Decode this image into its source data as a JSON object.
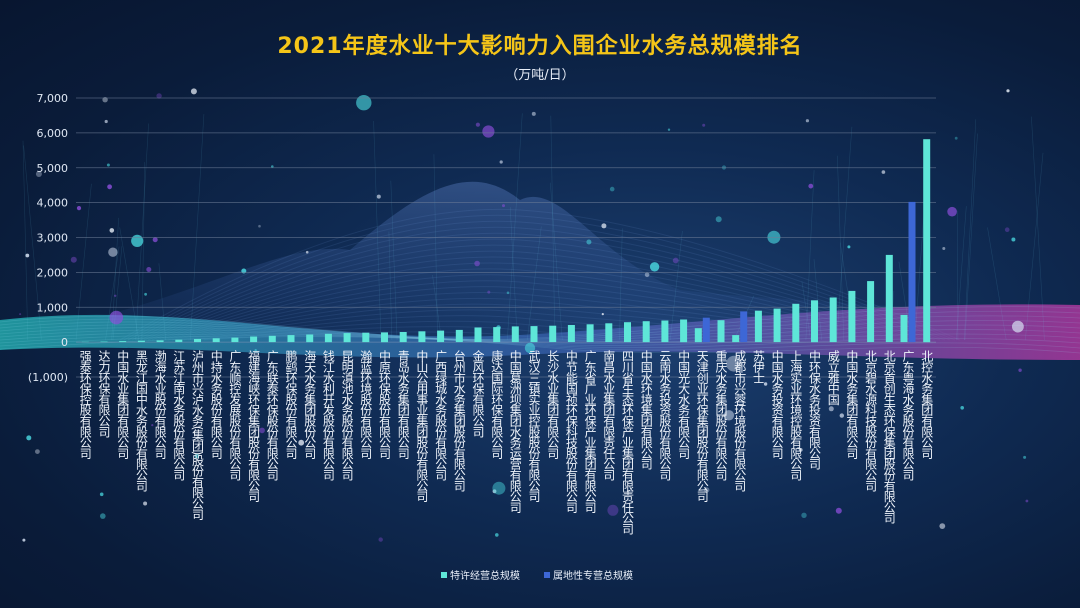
{
  "chart_data": {
    "type": "bar",
    "title": "2021年度水业十大影响力入围企业水务总规模排名",
    "unit_label": "（万吨/日）",
    "ylim": [
      -1000,
      7000
    ],
    "yticks": [
      -1000,
      0,
      1000,
      2000,
      3000,
      4000,
      5000,
      6000,
      7000
    ],
    "ytick_labels": [
      "(1,000)",
      "0",
      "1,000",
      "2,000",
      "3,000",
      "4,000",
      "5,000",
      "6,000",
      "7,000"
    ],
    "grid": true,
    "legend_position": "bottom-center",
    "categories": [
      "强泰环保控股有限公司",
      "达力环保有限公司",
      "中国水业集团有限公司",
      "黑龙江国中水务股份有限公司",
      "渤海水业股份有限公司",
      "江苏江南水务股份有限公司",
      "泸州市兴泸水务(集团)股份有限公司",
      "中持水务股份有限公司",
      "广东顺控发展股份有限公司",
      "福建海峡环保集团股份有限公司",
      "广东联泰环保股份有限公司",
      "鹏鹞环保股份有限公司",
      "海天水务集团股份公司",
      "钱江水利开发股份有限公司",
      "昆明滇池水务股份有限公司",
      "瀚蓝环境股份有限公司",
      "中原环保股份有限公司",
      "青岛水务集团有限公司",
      "中山公用事业集团股份有限公司",
      "广西绿城水务股份有限公司",
      "台州市水务集团股份有限公司",
      "金风环保有限公司",
      "康达国际环保有限公司",
      "中国葛洲坝集团水务运营有限公司",
      "武汉三镇实业控股股份有限公司",
      "长沙水业集团有限公司",
      "中节能国祯环保科技股份有限公司",
      "广东省广业环保产业集团有限公司",
      "南昌水业集团有限责任公司",
      "四川省生态环保产业集团有限责任公司",
      "中国水环境集团有限公司",
      "云南水务投资股份有限公司",
      "中国光大水务有限公司",
      "天津创业环保集团股份有限公司",
      "重庆水务集团股份有限公司",
      "成都市兴蓉环境股份有限公司",
      "苏伊士",
      "中国水务投资有限公司",
      "上海实业环境控股有限公司",
      "中环保水务投资有限公司",
      "威立雅中国",
      "中国水务集团有限公司",
      "北京碧水源科技股份有限公司",
      "北京首创生态环保集团股份有限公司",
      "广东粤海水务股份有限公司",
      "北控水务集团有限公司"
    ],
    "series": [
      {
        "name": "特许经营总规模",
        "color": "#5ee6d8",
        "values": [
          10,
          15,
          30,
          40,
          50,
          70,
          90,
          110,
          130,
          160,
          180,
          200,
          220,
          240,
          260,
          270,
          280,
          290,
          310,
          330,
          350,
          420,
          430,
          450,
          460,
          470,
          490,
          510,
          540,
          570,
          600,
          620,
          650,
          400,
          630,
          200,
          900,
          960,
          1100,
          1200,
          1280,
          1470,
          1750,
          2500,
          780,
          5820
        ]
      },
      {
        "name": "属地性专营总规模",
        "color": "#3d67d6",
        "values": [
          0,
          0,
          0,
          0,
          0,
          0,
          0,
          0,
          0,
          0,
          0,
          0,
          0,
          0,
          0,
          0,
          0,
          0,
          0,
          0,
          0,
          0,
          0,
          0,
          0,
          0,
          0,
          0,
          0,
          0,
          0,
          0,
          0,
          700,
          0,
          880,
          0,
          0,
          0,
          0,
          0,
          0,
          0,
          0,
          4020,
          0
        ]
      }
    ]
  }
}
